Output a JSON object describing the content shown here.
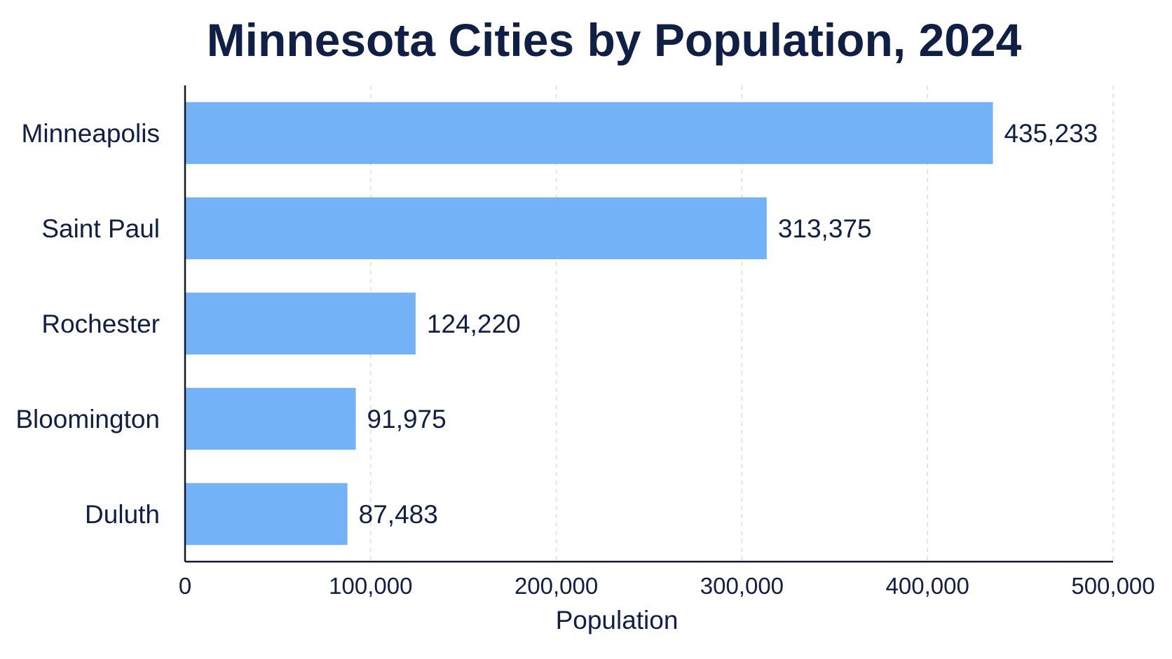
{
  "chart_data": {
    "type": "bar",
    "orientation": "horizontal",
    "title": "Minnesota Cities by Population, 2024",
    "xlabel": "Population",
    "ylabel": "",
    "categories": [
      "Minneapolis",
      "Saint Paul",
      "Rochester",
      "Bloomington",
      "Duluth"
    ],
    "values": [
      435233,
      313375,
      124220,
      91975,
      87483
    ],
    "value_labels": [
      "435,233",
      "313,375",
      "124,220",
      "91,975",
      "87,483"
    ],
    "xlim": [
      0,
      500000
    ],
    "xticks": [
      0,
      100000,
      200000,
      300000,
      400000,
      500000
    ],
    "xtick_labels": [
      "0",
      "100,000",
      "200,000",
      "300,000",
      "400,000",
      "500,000"
    ],
    "grid": "vertical dashed",
    "legend": "none"
  },
  "colors": {
    "bar": "#74b2f8",
    "text": "#0f1f45",
    "axis": "#111827",
    "grid": "#d9dde3",
    "background": "#ffffff"
  }
}
